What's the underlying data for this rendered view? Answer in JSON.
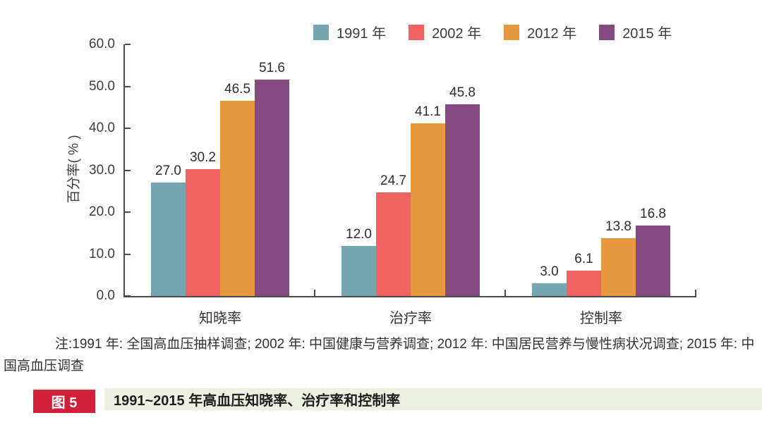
{
  "chart_data": {
    "type": "bar",
    "title": "",
    "ylabel": "百分率( % )",
    "ylim": [
      0,
      60
    ],
    "yticks": [
      "0.0",
      "10.0",
      "20.0",
      "30.0",
      "40.0",
      "50.0",
      "60.0"
    ],
    "categories": [
      "知晓率",
      "治疗率",
      "控制率"
    ],
    "series": [
      {
        "name": "1991 年",
        "color": "#76A6B1",
        "values": [
          27.0,
          12.0,
          3.0
        ],
        "labels": [
          "27.0",
          "12.0",
          "3.0"
        ]
      },
      {
        "name": "2002 年",
        "color": "#EF6363",
        "values": [
          30.2,
          24.7,
          6.1
        ],
        "labels": [
          "30.2",
          "24.7",
          "6.1"
        ]
      },
      {
        "name": "2012 年",
        "color": "#E6993F",
        "values": [
          46.5,
          41.1,
          13.8
        ],
        "labels": [
          "46.5",
          "41.1",
          "13.8"
        ]
      },
      {
        "name": "2015 年",
        "color": "#854B80",
        "values": [
          51.6,
          45.8,
          16.8
        ],
        "labels": [
          "51.6",
          "45.8",
          "16.8"
        ]
      }
    ],
    "value_labels": true,
    "legend_position": "top",
    "grid": false,
    "axis_color": "#4a4a4a"
  },
  "note": {
    "text": "注:1991 年: 全国高血压抽样调查; 2002 年: 中国健康与营养调查; 2012 年: 中国居民营养与慢性病状况调查; 2015 年: 中国高血压调查"
  },
  "caption": {
    "badge": "图 5",
    "text": "1991~2015 年高血压知晓率、治疗率和控制率",
    "badge_color": "#D0203C",
    "bar_color": "#EDF1E1"
  }
}
